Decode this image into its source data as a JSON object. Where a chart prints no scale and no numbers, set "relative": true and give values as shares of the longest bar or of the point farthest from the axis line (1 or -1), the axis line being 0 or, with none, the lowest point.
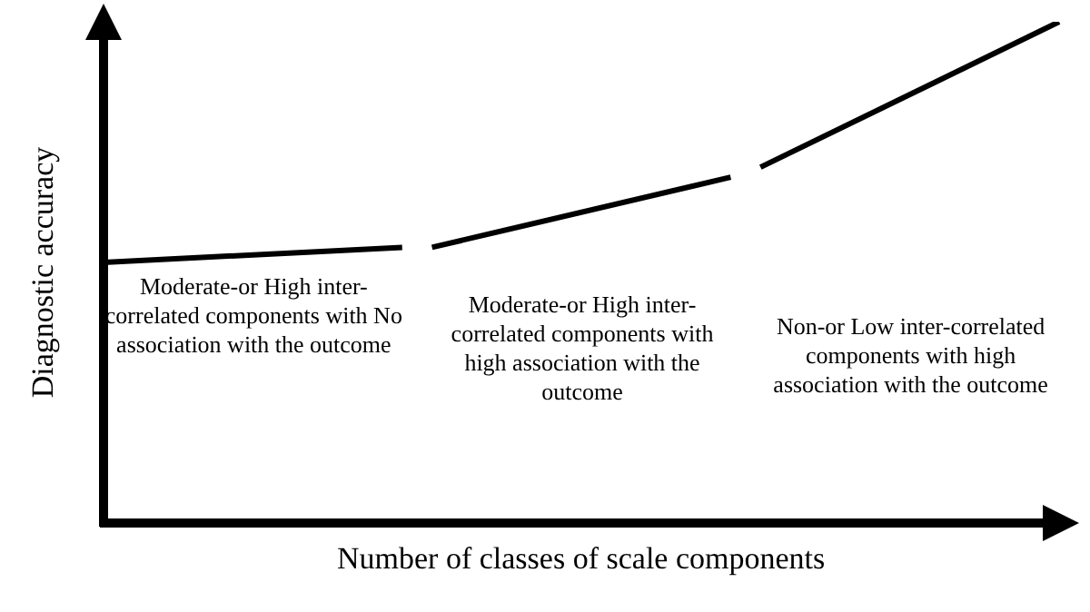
{
  "chart_data": {
    "type": "line",
    "relative": true,
    "xlabel": "Number of classes of scale components",
    "ylabel": "Diagnostic accuracy",
    "categories": [
      null,
      null,
      null,
      null,
      null,
      null,
      null,
      null,
      null,
      null,
      null,
      null,
      null,
      null,
      null,
      null,
      null,
      null,
      null,
      null,
      null,
      null,
      null,
      null,
      null,
      null,
      null,
      null,
      null,
      null,
      null,
      null,
      null
    ],
    "series": [
      {
        "color": "#000000",
        "values": [
          0.52,
          null,
          null,
          null,
          null,
          null,
          null,
          null,
          null,
          null,
          0.55,
          null,
          null,
          null,
          null,
          null,
          null,
          null,
          null,
          null,
          null,
          null,
          null,
          null,
          null,
          null,
          null,
          null,
          null,
          null,
          null,
          null,
          null
        ]
      },
      {
        "color": "#000000",
        "values": [
          null,
          null,
          null,
          null,
          null,
          null,
          null,
          null,
          null,
          null,
          null,
          0.55,
          null,
          null,
          null,
          null,
          null,
          null,
          null,
          null,
          null,
          0.69,
          null,
          null,
          null,
          null,
          null,
          null,
          null,
          null,
          null,
          null,
          null
        ]
      },
      {
        "color": "#000000",
        "values": [
          null,
          null,
          null,
          null,
          null,
          null,
          null,
          null,
          null,
          null,
          null,
          null,
          null,
          null,
          null,
          null,
          null,
          null,
          null,
          null,
          null,
          null,
          0.71,
          null,
          null,
          null,
          null,
          null,
          null,
          null,
          null,
          null,
          1
        ]
      }
    ],
    "annotations": [
      "Moderate-or High inter-correlated components with No association with the outcome",
      "Moderate-or High inter-correlated components with high association with the outcome",
      "Non-or Low inter-correlated components with high association with the outcome"
    ],
    "marker": "none",
    "legend": false
  }
}
